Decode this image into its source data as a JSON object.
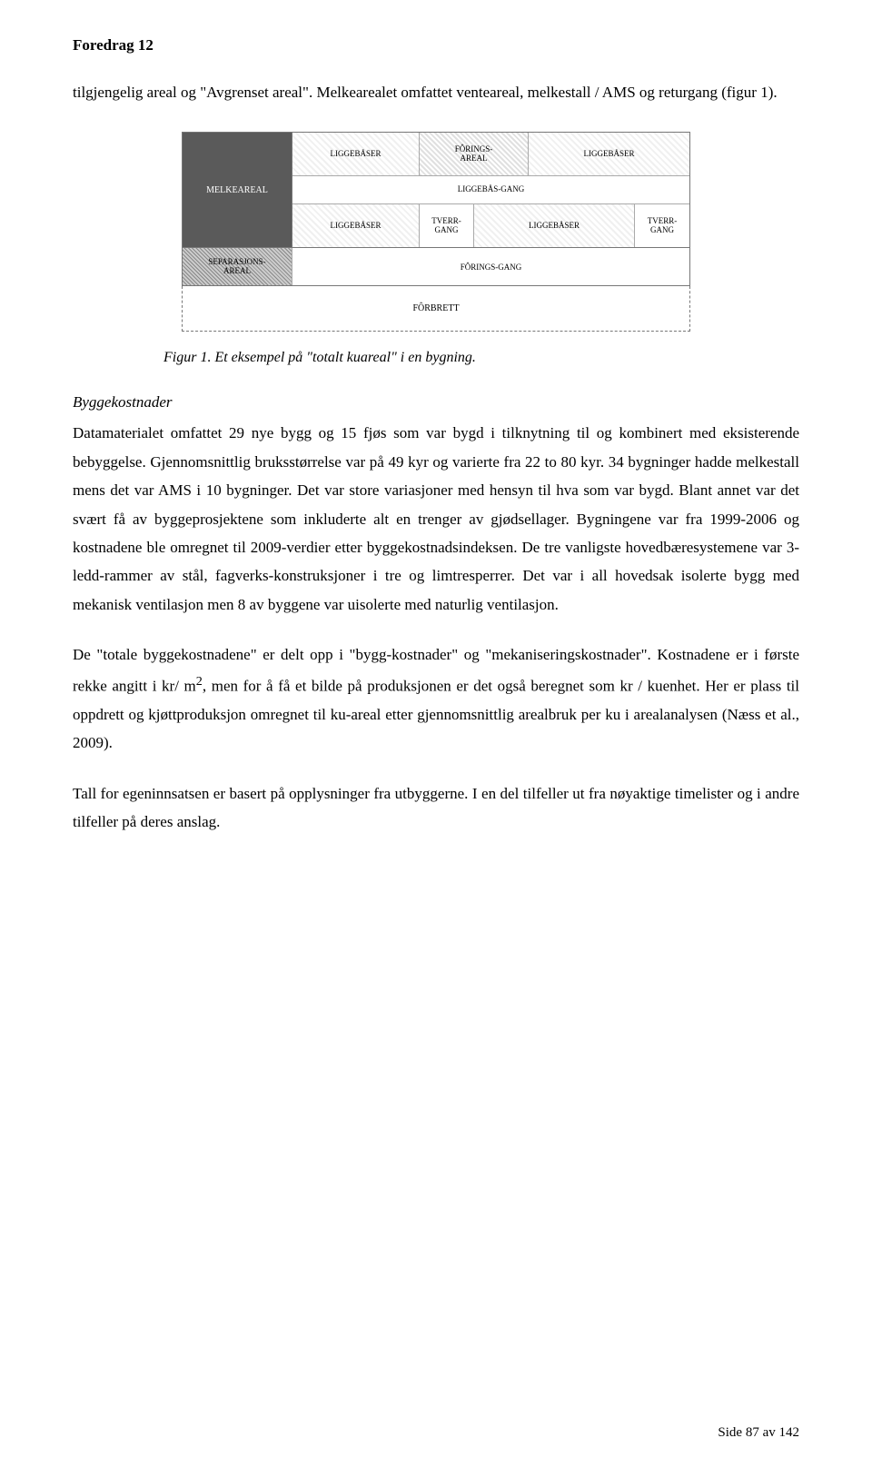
{
  "header": "Foredrag 12",
  "intro": "tilgjengelig areal og \"Avgrenset areal\". Melkearealet omfattet venteareal, melkestall / AMS og returgang (figur 1).",
  "diagram": {
    "melke": "MELKEAREAL",
    "row1": {
      "c1": "LIGGEBÅSER",
      "c2": "FÔRINGS-\nAREAL",
      "c3": "LIGGEBÅSER"
    },
    "row2": {
      "span": "LIGGEBÅS-GANG"
    },
    "row3": {
      "c1": "LIGGEBÅSER",
      "c2": "TVERR-\nGANG",
      "c3": "LIGGEBÅSER",
      "c4": "TVERR-\nGANG"
    },
    "lower": {
      "sep": "SEPARASJONS-\nAREAL",
      "forings": "FÔRINGS-GANG"
    },
    "forbrett": "FÔRBRETT"
  },
  "figcaption": "Figur 1. Et eksempel på \"totalt kuareal\" i en bygning.",
  "section_head": "Byggekostnader",
  "para1": "Datamaterialet omfattet 29 nye bygg og 15 fjøs som var bygd i tilknytning til og kombinert med eksisterende bebyggelse. Gjennomsnittlig bruksstørrelse var på 49 kyr og varierte fra 22 to 80 kyr. 34 bygninger hadde melkestall mens det var AMS i 10 bygninger. Det var store variasjoner med hensyn til hva som var bygd. Blant annet var det svært få av byggeprosjektene som inkluderte alt en trenger av gjødsellager. Bygningene var fra 1999-2006 og kostnadene ble omregnet til 2009-verdier etter byggekostnadsindeksen. De tre vanligste hovedbæresystemene var 3-ledd-rammer av stål, fagverks-konstruksjoner i tre og limtresperrer. Det var i all hovedsak isolerte bygg med mekanisk ventilasjon men 8 av byggene var uisolerte med naturlig ventilasjon.",
  "para2_a": "De \"totale byggekostnadene\" er delt opp i \"bygg-kostnader\" og \"mekaniseringskostnader\". Kostnadene er i første rekke angitt i kr/ m",
  "para2_sup": "2",
  "para2_b": ", men for å få et bilde på produksjonen er det også beregnet som kr / kuenhet. Her er plass til oppdrett og kjøttproduksjon omregnet til ku-areal etter gjennomsnittlig arealbruk per ku i arealanalysen (Næss et al., 2009).",
  "para3": "Tall for egeninnsatsen er basert på opplysninger fra utbyggerne. I en del tilfeller ut fra nøyaktige timelister og i andre tilfeller på deres anslag.",
  "footer": "Side 87 av 142"
}
